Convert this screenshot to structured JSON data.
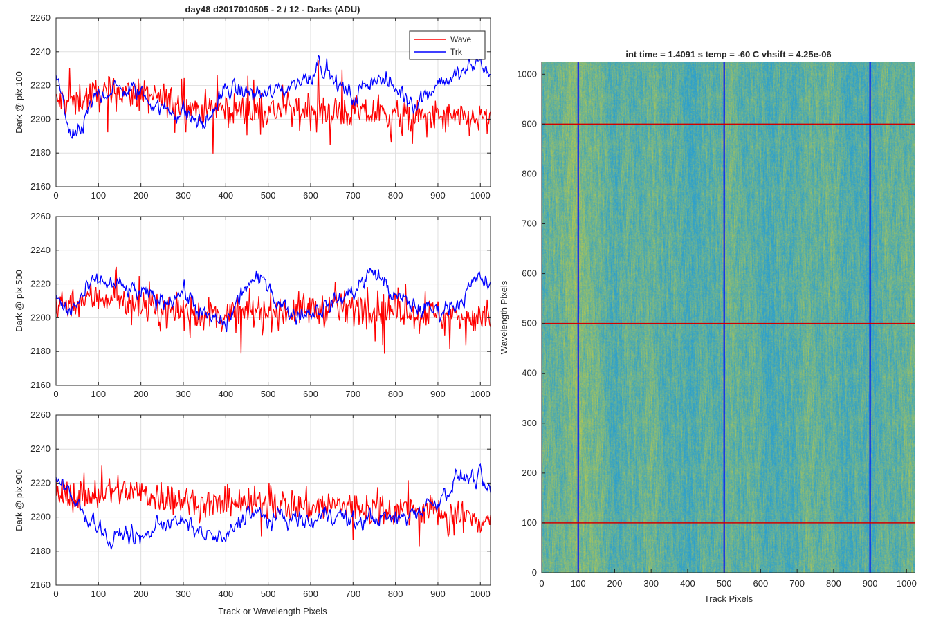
{
  "figure": {
    "suptitle": "day48 d2017010505 - 2 / 12 - Darks (ADU)",
    "shared_xlabel": "Track or Wavelength Pixels"
  },
  "colors": {
    "wave": "#ff0000",
    "trk": "#0000ff",
    "cut_line": "#d00000",
    "map_low": "#2a9fd0",
    "map_high": "#b9c94a"
  },
  "legend": {
    "placement": "top-right",
    "entries": [
      "Wave",
      "Trk"
    ]
  },
  "chart_data": [
    {
      "type": "line",
      "panel": "pix100",
      "ylabel": "Dark @ pix 100",
      "xlim": [
        0,
        1024
      ],
      "ylim": [
        2160,
        2260
      ],
      "xticks": [
        0,
        100,
        200,
        300,
        400,
        500,
        600,
        700,
        800,
        900,
        1000
      ],
      "yticks": [
        2160,
        2180,
        2200,
        2220,
        2240,
        2260
      ],
      "grid": true,
      "series": [
        {
          "name": "Wave",
          "color": "#ff0000",
          "mean": 2207,
          "spread": 9,
          "anchors_x": [
            0,
            50,
            100,
            150,
            200,
            250,
            300,
            350,
            400,
            450,
            500,
            550,
            600,
            650,
            700,
            750,
            800,
            850,
            900,
            950,
            1024
          ],
          "anchors_y": [
            2210,
            2212,
            2215,
            2216,
            2214,
            2212,
            2208,
            2206,
            2206,
            2205,
            2205,
            2206,
            2205,
            2204,
            2204,
            2203,
            2202,
            2201,
            2201,
            2200,
            2200
          ]
        },
        {
          "name": "Trk",
          "color": "#0000ff",
          "mean": 2212,
          "spread": 4,
          "anchors_x": [
            0,
            20,
            40,
            60,
            80,
            100,
            150,
            200,
            250,
            300,
            350,
            400,
            450,
            500,
            550,
            600,
            620,
            650,
            700,
            750,
            800,
            850,
            900,
            950,
            1000,
            1024
          ],
          "anchors_y": [
            2226,
            2205,
            2188,
            2192,
            2206,
            2216,
            2218,
            2216,
            2206,
            2204,
            2196,
            2218,
            2216,
            2214,
            2220,
            2226,
            2236,
            2224,
            2212,
            2226,
            2218,
            2210,
            2222,
            2226,
            2234,
            2226
          ]
        }
      ]
    },
    {
      "type": "line",
      "panel": "pix500",
      "ylabel": "Dark @ pix 500",
      "xlim": [
        0,
        1024
      ],
      "ylim": [
        2160,
        2260
      ],
      "xticks": [
        0,
        100,
        200,
        300,
        400,
        500,
        600,
        700,
        800,
        900,
        1000
      ],
      "yticks": [
        2160,
        2180,
        2200,
        2220,
        2240,
        2260
      ],
      "grid": true,
      "series": [
        {
          "name": "Wave",
          "color": "#ff0000",
          "mean": 2204,
          "spread": 9,
          "anchors_x": [
            0,
            50,
            100,
            150,
            200,
            250,
            300,
            350,
            400,
            450,
            500,
            550,
            600,
            650,
            700,
            750,
            800,
            850,
            900,
            950,
            1024
          ],
          "anchors_y": [
            2208,
            2210,
            2212,
            2212,
            2206,
            2204,
            2204,
            2202,
            2202,
            2203,
            2204,
            2204,
            2205,
            2205,
            2206,
            2207,
            2204,
            2203,
            2202,
            2201,
            2200
          ]
        },
        {
          "name": "Trk",
          "color": "#0000ff",
          "mean": 2210,
          "spread": 4,
          "anchors_x": [
            0,
            30,
            60,
            100,
            150,
            200,
            250,
            300,
            350,
            400,
            450,
            500,
            520,
            560,
            600,
            650,
            700,
            750,
            800,
            850,
            900,
            950,
            1000,
            1024
          ],
          "anchors_y": [
            2212,
            2202,
            2212,
            2222,
            2218,
            2214,
            2210,
            2216,
            2200,
            2196,
            2220,
            2222,
            2210,
            2202,
            2204,
            2208,
            2216,
            2228,
            2212,
            2206,
            2204,
            2210,
            2224,
            2218
          ]
        }
      ]
    },
    {
      "type": "line",
      "panel": "pix900",
      "ylabel": "Dark @ pix 900",
      "xlabel": "Track or Wavelength Pixels",
      "xlim": [
        0,
        1024
      ],
      "ylim": [
        2160,
        2260
      ],
      "xticks": [
        0,
        100,
        200,
        300,
        400,
        500,
        600,
        700,
        800,
        900,
        1000
      ],
      "yticks": [
        2160,
        2180,
        2200,
        2220,
        2240,
        2260
      ],
      "grid": true,
      "series": [
        {
          "name": "Wave",
          "color": "#ff0000",
          "mean": 2207,
          "spread": 9,
          "anchors_x": [
            0,
            50,
            100,
            150,
            200,
            250,
            300,
            350,
            400,
            450,
            500,
            550,
            600,
            650,
            700,
            750,
            800,
            850,
            900,
            950,
            1024
          ],
          "anchors_y": [
            2214,
            2212,
            2214,
            2216,
            2214,
            2212,
            2210,
            2208,
            2206,
            2208,
            2208,
            2207,
            2206,
            2207,
            2206,
            2205,
            2204,
            2205,
            2203,
            2200,
            2198
          ]
        },
        {
          "name": "Trk",
          "color": "#0000ff",
          "mean": 2200,
          "spread": 4,
          "anchors_x": [
            0,
            30,
            60,
            100,
            130,
            160,
            200,
            250,
            300,
            350,
            400,
            450,
            500,
            550,
            600,
            650,
            700,
            750,
            800,
            850,
            900,
            950,
            1000,
            1024
          ],
          "anchors_y": [
            2226,
            2212,
            2204,
            2196,
            2184,
            2192,
            2186,
            2198,
            2196,
            2190,
            2186,
            2204,
            2198,
            2200,
            2196,
            2204,
            2196,
            2200,
            2198,
            2204,
            2210,
            2224,
            2222,
            2212
          ]
        }
      ]
    },
    {
      "type": "heatmap",
      "title": "int time = 1.4091 s    temp = -60 C    vhsift = 4.25e-06",
      "xlabel": "Track Pixels",
      "ylabel": "Wavelength Pixels",
      "xlim": [
        0,
        1024
      ],
      "ylim": [
        0,
        1024
      ],
      "xticks": [
        0,
        100,
        200,
        300,
        400,
        500,
        600,
        700,
        800,
        900,
        1000
      ],
      "yticks": [
        0,
        100,
        200,
        300,
        400,
        500,
        600,
        700,
        800,
        900,
        1000
      ],
      "colormap": "parula",
      "vertical_cuts_x": [
        100,
        500,
        900
      ],
      "horizontal_cuts_y": [
        100,
        500,
        900
      ]
    }
  ]
}
